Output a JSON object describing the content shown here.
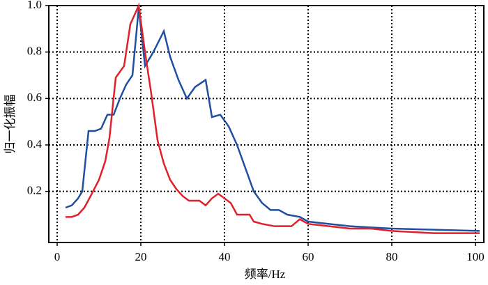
{
  "chart_data": {
    "type": "line",
    "xlabel": "频率/Hz",
    "ylabel": "归一化振幅",
    "xlim": [
      -2,
      102
    ],
    "ylim": [
      -0.02,
      1.0
    ],
    "xticks": [
      0,
      20,
      40,
      60,
      80,
      100
    ],
    "yticks": [
      0.2,
      0.4,
      0.6,
      0.8,
      {
        "value": 1,
        "label": "1.0"
      }
    ],
    "grid": true,
    "series": [
      {
        "color": "#1f4fa3",
        "x": [
          2,
          3.5,
          5,
          6,
          7.5,
          9,
          10.5,
          12,
          13.5,
          15,
          16.5,
          18,
          19.5,
          21,
          23,
          25.5,
          27,
          29,
          31,
          33,
          35.5,
          37,
          39,
          41,
          43,
          45,
          47,
          49,
          51,
          53,
          55,
          58,
          60,
          65,
          70,
          75,
          80,
          90,
          101
        ],
        "values": [
          0.13,
          0.14,
          0.17,
          0.2,
          0.46,
          0.46,
          0.47,
          0.53,
          0.53,
          0.6,
          0.66,
          0.7,
          0.99,
          0.74,
          0.8,
          0.89,
          0.78,
          0.68,
          0.6,
          0.65,
          0.68,
          0.52,
          0.53,
          0.48,
          0.4,
          0.3,
          0.2,
          0.15,
          0.12,
          0.12,
          0.1,
          0.09,
          0.07,
          0.06,
          0.05,
          0.045,
          0.04,
          0.035,
          0.03
        ]
      },
      {
        "color": "#e0202a",
        "x": [
          2,
          3.5,
          5,
          6.5,
          8,
          10,
          11.5,
          12.5,
          14,
          16,
          17.5,
          19.5,
          21,
          22.5,
          24,
          25.5,
          27,
          28.5,
          30,
          31.5,
          34,
          35.5,
          37,
          38.5,
          40,
          41.5,
          43,
          46,
          47,
          49,
          52,
          56,
          58,
          60,
          65,
          70,
          75,
          80,
          90,
          101
        ],
        "values": [
          0.09,
          0.09,
          0.1,
          0.13,
          0.18,
          0.25,
          0.33,
          0.43,
          0.69,
          0.74,
          0.92,
          1.0,
          0.8,
          0.62,
          0.42,
          0.32,
          0.25,
          0.21,
          0.18,
          0.16,
          0.16,
          0.14,
          0.17,
          0.19,
          0.17,
          0.15,
          0.1,
          0.1,
          0.07,
          0.06,
          0.05,
          0.05,
          0.08,
          0.06,
          0.05,
          0.04,
          0.04,
          0.03,
          0.02,
          0.02
        ]
      }
    ]
  }
}
